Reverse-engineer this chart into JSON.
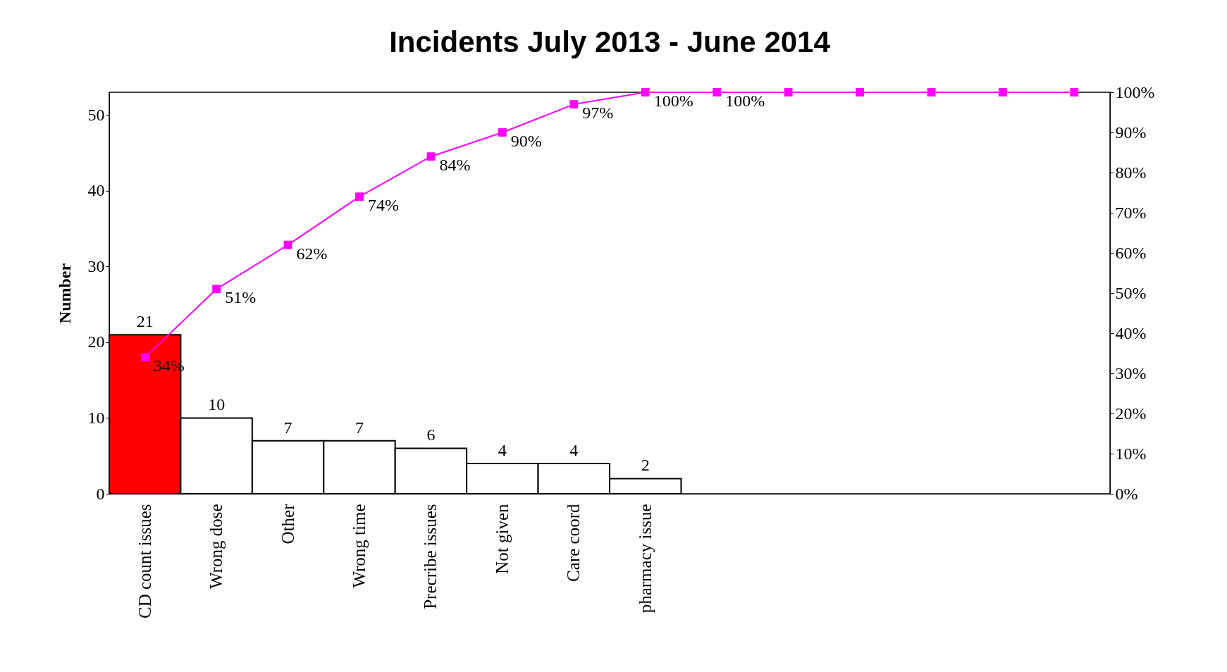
{
  "chart_data": {
    "type": "bar",
    "title": "Incidents July 2013 - June 2014",
    "ylabel": "Number",
    "categories": [
      "CD count issues",
      "Wrong dose",
      "Other",
      "Wrong time",
      "Precribe issues",
      "Not given",
      "Care coord",
      "pharmacy issue",
      null,
      null,
      null,
      null,
      null,
      null
    ],
    "series": [
      {
        "colors": [
          "#ff0000",
          "#ffffff",
          "#ffffff",
          "#ffffff",
          "#ffffff",
          "#ffffff",
          "#ffffff",
          "#ffffff",
          null,
          null,
          null,
          null,
          null,
          null
        ],
        "values": [
          21,
          10,
          7,
          7,
          6,
          4,
          4,
          2,
          null,
          null,
          null,
          null,
          null,
          null
        ]
      },
      {
        "type": "line",
        "axis": "y2",
        "color": "#ff00ff",
        "values": [
          34,
          51,
          62,
          74,
          84,
          90,
          97,
          100,
          100,
          100,
          100,
          100,
          100,
          100
        ],
        "value_labels": [
          "34%",
          "51%",
          "62%",
          "74%",
          "84%",
          "90%",
          "97%",
          "100%",
          "100%",
          null,
          null,
          null,
          null,
          null
        ]
      }
    ],
    "data_labels": true,
    "ylim": [
      0,
      53
    ],
    "yticks": [
      0,
      10,
      20,
      30,
      40,
      50
    ],
    "y2lim": [
      0,
      100
    ],
    "y2ticks": [
      {
        "value": 0,
        "label": "0%"
      },
      {
        "value": 10,
        "label": "10%"
      },
      {
        "value": 20,
        "label": "20%"
      },
      {
        "value": 30,
        "label": "30%"
      },
      {
        "value": 40,
        "label": "40%"
      },
      {
        "value": 50,
        "label": "50%"
      },
      {
        "value": 60,
        "label": "60%"
      },
      {
        "value": 70,
        "label": "70%"
      },
      {
        "value": 80,
        "label": "80%"
      },
      {
        "value": 90,
        "label": "90%"
      },
      {
        "value": 100,
        "label": "100%"
      }
    ],
    "marker": "square",
    "grid": false
  }
}
